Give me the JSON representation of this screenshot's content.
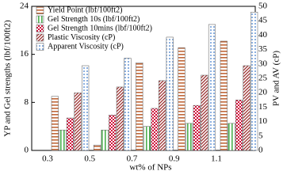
{
  "chart_data": {
    "type": "bar",
    "categories": [
      "0.3",
      "0.5",
      "0.7",
      "0.9",
      "1.1"
    ],
    "x_label": "wt% of NPs",
    "y_label": "YP and Gel strengths (lbf/100ft2)",
    "y2_label": "PV and AV (cP)",
    "ylim": [
      0,
      24
    ],
    "yticks": [
      0,
      8,
      16,
      24
    ],
    "y2lim": [
      0,
      50
    ],
    "y2ticks": [
      0,
      5,
      10,
      15,
      20,
      25,
      30,
      35,
      40,
      45,
      50
    ],
    "legend": "upper left",
    "series": [
      {
        "name": "Yield Point (lbf/100ft2)",
        "color": "#c0683a",
        "pattern": "hlines",
        "values": [
          9.0,
          0.9,
          14.6,
          17.1,
          18.2
        ]
      },
      {
        "name": "Gel Strength 10s (lbf/100ft2)",
        "color": "#4caf50",
        "pattern": "vlines",
        "values": [
          3.4,
          3.4,
          4.0,
          4.5,
          4.5
        ]
      },
      {
        "name": "Gel Strength 10mins (lbf/100ft2)",
        "color": "#d0103a",
        "pattern": "checker",
        "values": [
          5.4,
          5.9,
          7.0,
          7.5,
          8.4
        ]
      },
      {
        "name": "Plastic Viscosity (cP)",
        "color": "#9b2d2d",
        "pattern": "diag",
        "axis": "y2",
        "values": [
          20.0,
          22.0,
          24.2,
          26.1,
          29.4
        ]
      },
      {
        "name": "Apparent Viscosity (cP)",
        "color": "#3a78c8",
        "pattern": "dots",
        "axis": "y2",
        "values": [
          29.4,
          32.0,
          39.3,
          43.7,
          48.0
        ]
      }
    ]
  }
}
